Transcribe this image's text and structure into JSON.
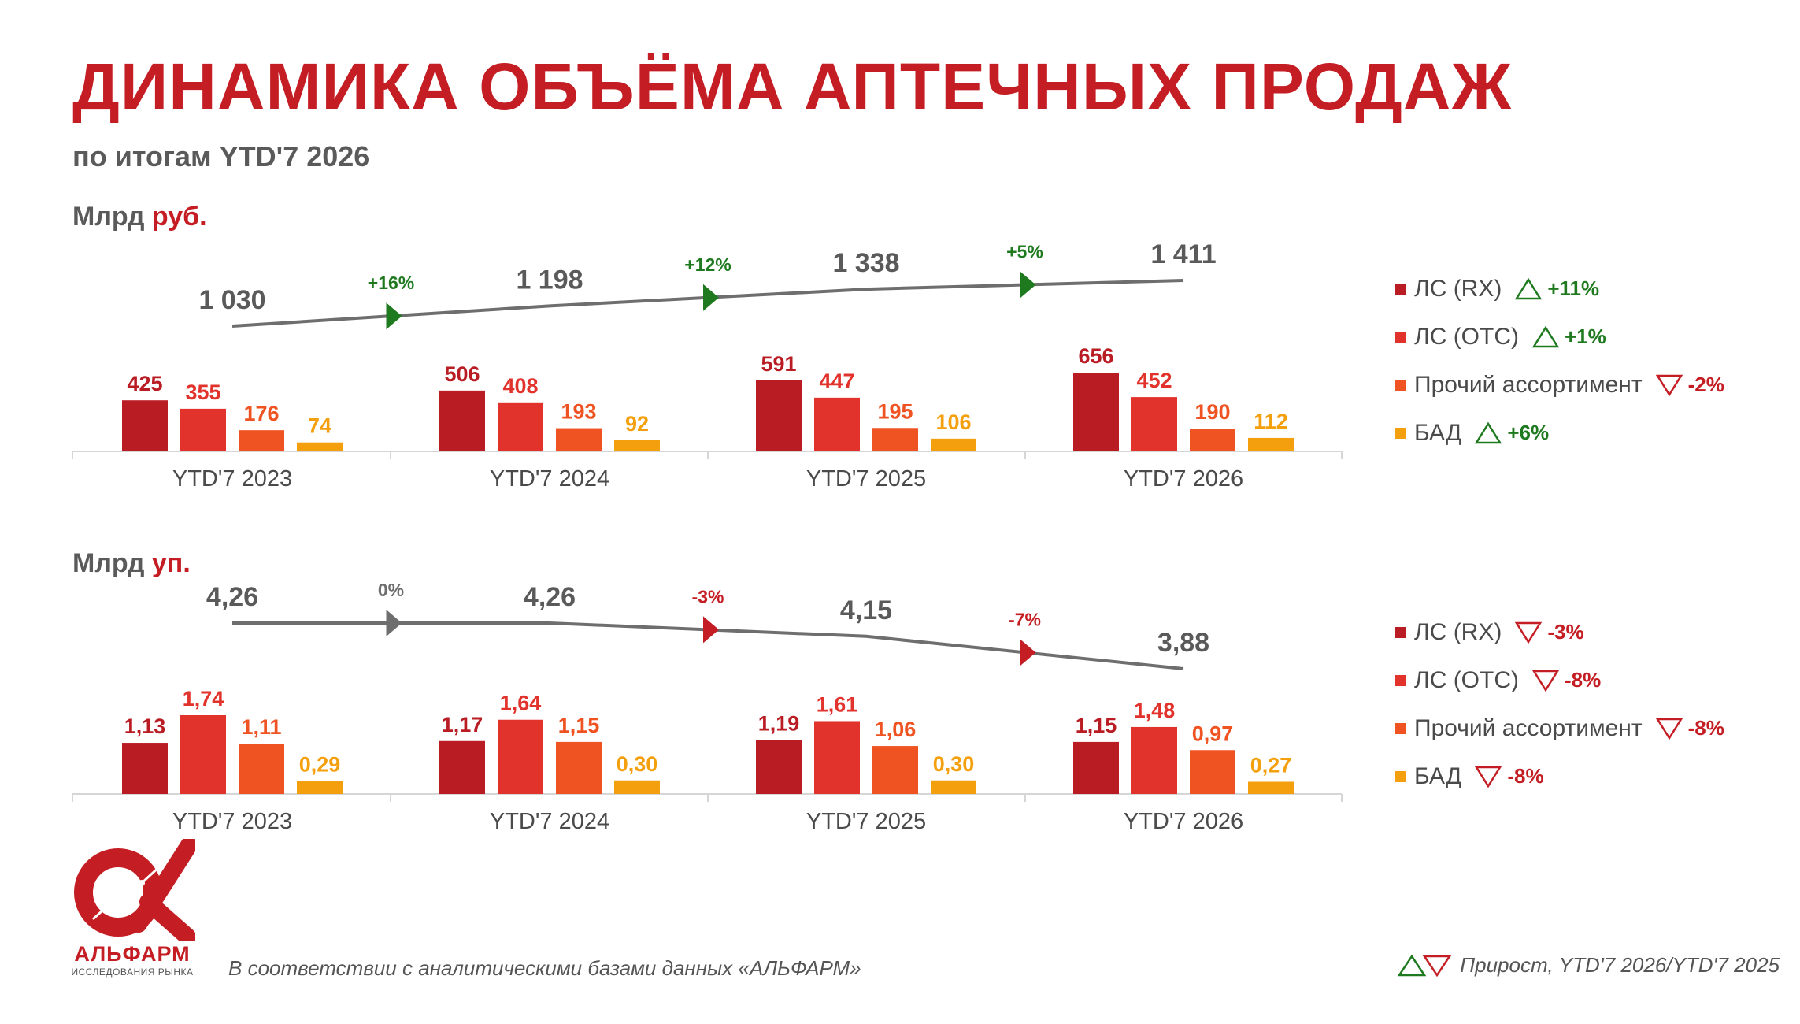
{
  "header": {
    "title": "ДИНАМИКА ОБЪЁМА АПТЕЧНЫХ ПРОДАЖ",
    "subtitle": "по итогам YTD'7 2026"
  },
  "colors": {
    "brand": "#c41e24",
    "text_gray": "#5a5a5a",
    "line_gray": "#6e6e6e",
    "up": "#1f7a1f",
    "down": "#c41e24"
  },
  "chart_data": [
    {
      "id": "rub",
      "type": "bar",
      "unit_label": {
        "prefix": "Млрд ",
        "highlight": "руб."
      },
      "categories": [
        "YTD'7 2023",
        "YTD'7 2024",
        "YTD'7 2025",
        "YTD'7 2026"
      ],
      "series": [
        {
          "name": "ЛС (RX)",
          "color": "#b91c23",
          "label_color": "#b91c23",
          "values": [
            425,
            506,
            591,
            656
          ],
          "labels": [
            "425",
            "506",
            "591",
            "656"
          ]
        },
        {
          "name": "ЛС (ОТС)",
          "color": "#e2322c",
          "label_color": "#e2322c",
          "values": [
            355,
            408,
            447,
            452
          ],
          "labels": [
            "355",
            "408",
            "447",
            "452"
          ]
        },
        {
          "name": "Прочий ассортимент",
          "color": "#ef5322",
          "label_color": "#ef5322",
          "values": [
            176,
            193,
            195,
            190
          ],
          "labels": [
            "176",
            "193",
            "195",
            "190"
          ]
        },
        {
          "name": "БАД",
          "color": "#f4a00e",
          "label_color": "#f4a00e",
          "values": [
            74,
            92,
            106,
            112
          ],
          "labels": [
            "74",
            "92",
            "106",
            "112"
          ]
        }
      ],
      "total": {
        "values": [
          1030,
          1198,
          1338,
          1411
        ],
        "labels": [
          "1 030",
          "1 198",
          "1 338",
          "1 411"
        ]
      },
      "growth": [
        {
          "label": "+16%",
          "dir": "up"
        },
        {
          "label": "+12%",
          "dir": "up"
        },
        {
          "label": "+5%",
          "dir": "up"
        }
      ],
      "legend": [
        {
          "name": "ЛС (RX)",
          "change": "+11%",
          "dir": "up"
        },
        {
          "name": "ЛС (ОТС)",
          "change": "+1%",
          "dir": "up"
        },
        {
          "name": "Прочий ассортимент",
          "change": "-2%",
          "dir": "down"
        },
        {
          "name": "БАД",
          "change": "+6%",
          "dir": "up"
        }
      ]
    },
    {
      "id": "up",
      "type": "bar",
      "unit_label": {
        "prefix": "Млрд ",
        "highlight": "уп."
      },
      "categories": [
        "YTD'7 2023",
        "YTD'7 2024",
        "YTD'7 2025",
        "YTD'7 2026"
      ],
      "series": [
        {
          "name": "ЛС (RX)",
          "color": "#b91c23",
          "label_color": "#b91c23",
          "values": [
            1.13,
            1.17,
            1.19,
            1.15
          ],
          "labels": [
            "1,13",
            "1,17",
            "1,19",
            "1,15"
          ]
        },
        {
          "name": "ЛС (ОТС)",
          "color": "#e2322c",
          "label_color": "#e2322c",
          "values": [
            1.74,
            1.64,
            1.61,
            1.48
          ],
          "labels": [
            "1,74",
            "1,64",
            "1,61",
            "1,48"
          ]
        },
        {
          "name": "Прочий ассортимент",
          "color": "#ef5322",
          "label_color": "#ef5322",
          "values": [
            1.11,
            1.15,
            1.06,
            0.97
          ],
          "labels": [
            "1,11",
            "1,15",
            "1,06",
            "0,97"
          ]
        },
        {
          "name": "БАД",
          "color": "#f4a00e",
          "label_color": "#f4a00e",
          "values": [
            0.29,
            0.3,
            0.3,
            0.27
          ],
          "labels": [
            "0,29",
            "0,30",
            "0,30",
            "0,27"
          ]
        }
      ],
      "total": {
        "values": [
          4.26,
          4.26,
          4.15,
          3.88
        ],
        "labels": [
          "4,26",
          "4,26",
          "4,15",
          "3,88"
        ]
      },
      "growth": [
        {
          "label": "0%",
          "dir": "flat"
        },
        {
          "label": "-3%",
          "dir": "down"
        },
        {
          "label": "-7%",
          "dir": "down"
        }
      ],
      "legend": [
        {
          "name": "ЛС (RX)",
          "change": "-3%",
          "dir": "down"
        },
        {
          "name": "ЛС (ОТС)",
          "change": "-8%",
          "dir": "down"
        },
        {
          "name": "Прочий ассортимент",
          "change": "-8%",
          "dir": "down"
        },
        {
          "name": "БАД",
          "change": "-8%",
          "dir": "down"
        }
      ]
    }
  ],
  "logo": {
    "name": "АЛЬФАРМ",
    "tagline": "ИССЛЕДОВАНИЯ РЫНКА"
  },
  "footer": {
    "note": "В соответствии с аналитическими базами данных «АЛЬФАРМ»",
    "legend": "Прирост, YTD'7 2026/YTD'7 2025"
  }
}
